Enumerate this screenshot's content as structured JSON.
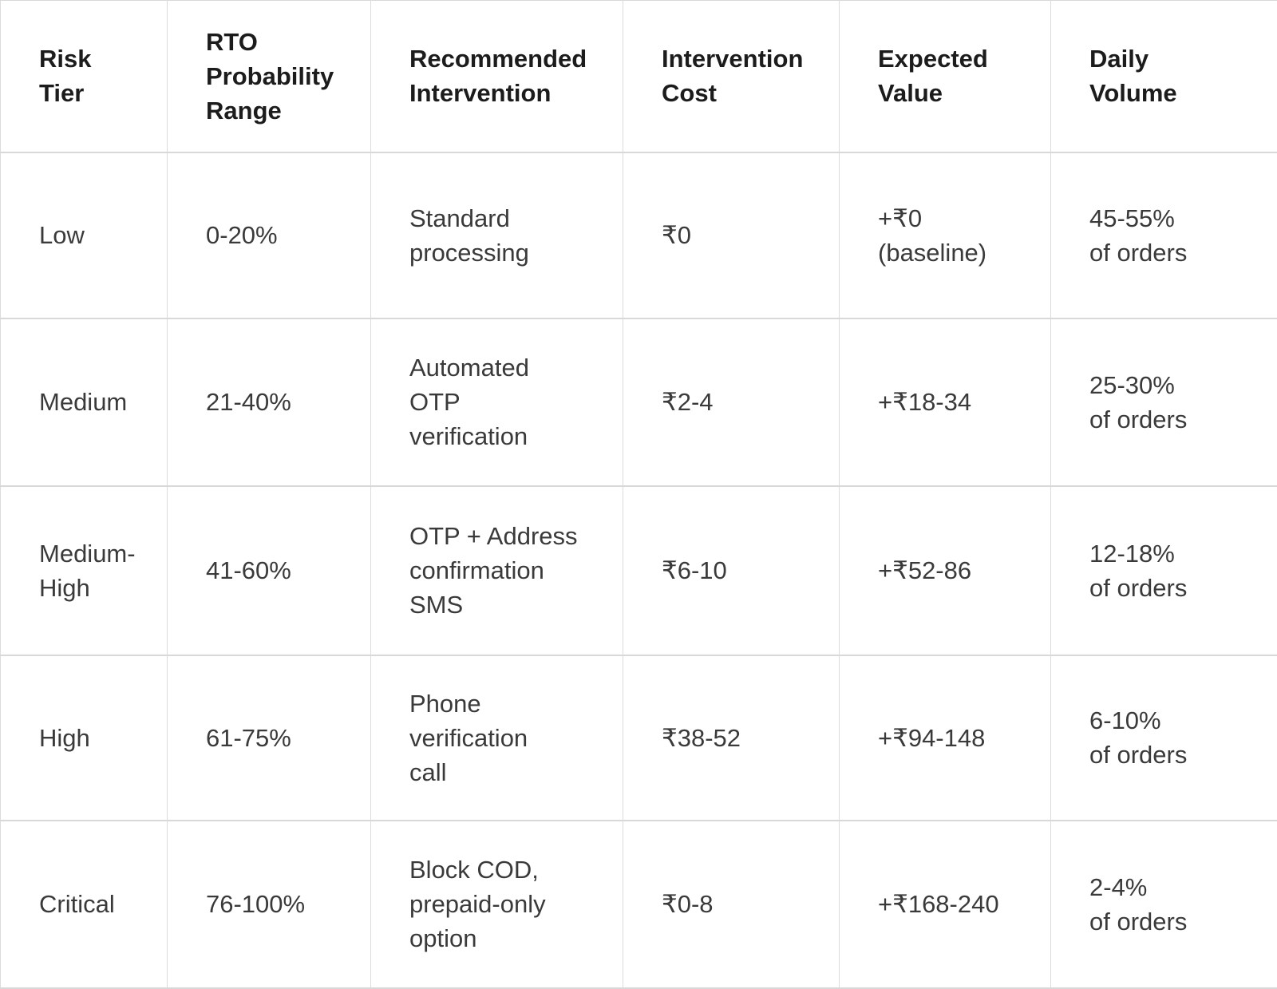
{
  "colors": {
    "background": "#ffffff",
    "header_text": "#1c1c1c",
    "body_text": "#3a3a3a",
    "grid_line_vertical": "#dcdcdc",
    "grid_line_horizontal": "#d8d8d8"
  },
  "table": {
    "header": {
      "cells": [
        "Risk\nTier",
        "RTO\nProbability\nRange",
        "Recommended\nIntervention",
        "Intervention\nCost",
        "Expected\nValue",
        "Daily\nVolume"
      ]
    },
    "rows": [
      {
        "cells": [
          "Low",
          "0-20%",
          "Standard\nprocessing",
          "₹0",
          "+₹0\n(baseline)",
          "45-55%\nof orders"
        ]
      },
      {
        "cells": [
          "Medium",
          "21-40%",
          "Automated\nOTP\nverification",
          "₹2-4",
          "+₹18-34",
          "25-30%\nof orders"
        ]
      },
      {
        "cells": [
          "Medium-\nHigh",
          "41-60%",
          "OTP + Address\nconfirmation\nSMS",
          "₹6-10",
          "+₹52-86",
          "12-18%\nof orders"
        ]
      },
      {
        "cells": [
          "High",
          "61-75%",
          "Phone\nverification\ncall",
          "₹38-52",
          "+₹94-148",
          "6-10%\nof orders"
        ]
      },
      {
        "cells": [
          "Critical",
          "76-100%",
          "Block COD,\nprepaid-only\noption",
          "₹0-8",
          "+₹168-240",
          "2-4%\nof orders"
        ]
      }
    ]
  }
}
